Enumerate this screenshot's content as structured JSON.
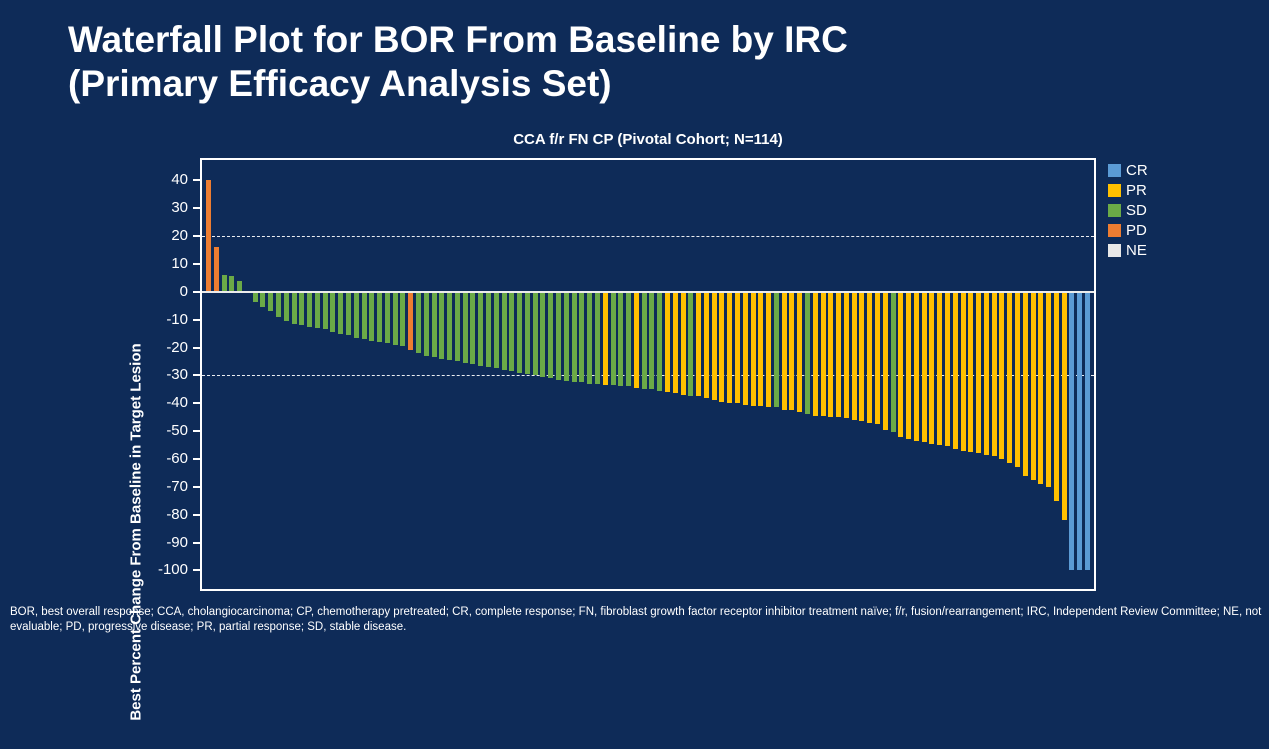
{
  "slide": {
    "title_line1": "Waterfall Plot for BOR From Baseline by IRC",
    "title_line2": "(Primary Efficacy Analysis Set)",
    "footnote": "BOR, best overall response; CCA, cholangiocarcinoma; CP, chemotherapy pretreated; CR, complete response; FN, fibroblast growth factor receptor inhibitor treatment naïve; f/r, fusion/rearrangement; IRC, Independent Review Committee; NE, not evaluable; PD, progressive disease; PR, partial response; SD, stable disease."
  },
  "colors": {
    "background": "#0E2B58",
    "text": "#FFFFFF",
    "frame": "#FFFFFF",
    "zero_line": "#ECECEC",
    "reference_line": "#FFFFFF"
  },
  "legend": [
    {
      "label": "CR",
      "color": "#5B9BD5"
    },
    {
      "label": "PR",
      "color": "#FFC000"
    },
    {
      "label": "SD",
      "color": "#6BAA47"
    },
    {
      "label": "PD",
      "color": "#ED7D31"
    },
    {
      "label": "NE",
      "color": "#E8E8E8"
    }
  ],
  "chart_data": {
    "type": "bar",
    "subtype": "waterfall",
    "title": "CCA f/r FN CP (Pivotal Cohort; N=114)",
    "xlabel": "",
    "ylabel": "Best Percent Change From Baseline in Target Lesion",
    "n": 114,
    "ylim": [
      -106.7,
      47.3
    ],
    "yticks": [
      40,
      30,
      20,
      10,
      0,
      -10,
      -20,
      -30,
      -40,
      -50,
      -60,
      -70,
      -80,
      -90,
      -100
    ],
    "reference_lines": [
      20,
      -30
    ],
    "grid": false,
    "legend_position": "top-right",
    "category_names": {
      "CR": "complete response",
      "PR": "partial response",
      "SD": "stable disease",
      "PD": "progressive disease",
      "NE": "not evaluable"
    },
    "bars": [
      {
        "v": 40,
        "c": "PD"
      },
      {
        "v": 16,
        "c": "PD"
      },
      {
        "v": 6,
        "c": "SD"
      },
      {
        "v": 5.5,
        "c": "SD"
      },
      {
        "v": 4,
        "c": "SD"
      },
      {
        "v": 0,
        "c": "NE"
      },
      {
        "v": -3.5,
        "c": "SD"
      },
      {
        "v": -5.5,
        "c": "SD"
      },
      {
        "v": -7,
        "c": "SD"
      },
      {
        "v": -9,
        "c": "SD"
      },
      {
        "v": -10.5,
        "c": "SD"
      },
      {
        "v": -11.5,
        "c": "SD"
      },
      {
        "v": -12,
        "c": "SD"
      },
      {
        "v": -12.5,
        "c": "SD"
      },
      {
        "v": -13,
        "c": "SD"
      },
      {
        "v": -13.5,
        "c": "SD"
      },
      {
        "v": -14.5,
        "c": "SD"
      },
      {
        "v": -15,
        "c": "SD"
      },
      {
        "v": -15.5,
        "c": "SD"
      },
      {
        "v": -16.5,
        "c": "SD"
      },
      {
        "v": -17,
        "c": "SD"
      },
      {
        "v": -17.5,
        "c": "SD"
      },
      {
        "v": -18,
        "c": "SD"
      },
      {
        "v": -18.5,
        "c": "SD"
      },
      {
        "v": -19,
        "c": "SD"
      },
      {
        "v": -19.5,
        "c": "SD"
      },
      {
        "v": -21,
        "c": "PD"
      },
      {
        "v": -22,
        "c": "SD"
      },
      {
        "v": -23,
        "c": "SD"
      },
      {
        "v": -23.5,
        "c": "SD"
      },
      {
        "v": -24,
        "c": "SD"
      },
      {
        "v": -24.5,
        "c": "SD"
      },
      {
        "v": -25,
        "c": "SD"
      },
      {
        "v": -25.5,
        "c": "SD"
      },
      {
        "v": -26,
        "c": "SD"
      },
      {
        "v": -26.5,
        "c": "SD"
      },
      {
        "v": -27,
        "c": "SD"
      },
      {
        "v": -27.5,
        "c": "SD"
      },
      {
        "v": -28,
        "c": "SD"
      },
      {
        "v": -28.5,
        "c": "SD"
      },
      {
        "v": -29,
        "c": "SD"
      },
      {
        "v": -29.5,
        "c": "SD"
      },
      {
        "v": -30,
        "c": "SD"
      },
      {
        "v": -30.5,
        "c": "SD"
      },
      {
        "v": -31,
        "c": "SD"
      },
      {
        "v": -31.5,
        "c": "SD"
      },
      {
        "v": -32,
        "c": "SD"
      },
      {
        "v": -32.5,
        "c": "SD"
      },
      {
        "v": -32.5,
        "c": "SD"
      },
      {
        "v": -33,
        "c": "SD"
      },
      {
        "v": -33,
        "c": "SD"
      },
      {
        "v": -33.5,
        "c": "PR"
      },
      {
        "v": -33.5,
        "c": "SD"
      },
      {
        "v": -34,
        "c": "SD"
      },
      {
        "v": -34,
        "c": "SD"
      },
      {
        "v": -34.5,
        "c": "PR"
      },
      {
        "v": -35,
        "c": "SD"
      },
      {
        "v": -35,
        "c": "SD"
      },
      {
        "v": -35.5,
        "c": "SD"
      },
      {
        "v": -36,
        "c": "PR"
      },
      {
        "v": -36.5,
        "c": "PR"
      },
      {
        "v": -37,
        "c": "PR"
      },
      {
        "v": -37.5,
        "c": "SD"
      },
      {
        "v": -37.5,
        "c": "PR"
      },
      {
        "v": -38,
        "c": "PR"
      },
      {
        "v": -39,
        "c": "PR"
      },
      {
        "v": -39.5,
        "c": "PR"
      },
      {
        "v": -40,
        "c": "PR"
      },
      {
        "v": -40,
        "c": "PR"
      },
      {
        "v": -40.5,
        "c": "PR"
      },
      {
        "v": -41,
        "c": "PR"
      },
      {
        "v": -41,
        "c": "PR"
      },
      {
        "v": -41.5,
        "c": "PR"
      },
      {
        "v": -41.5,
        "c": "SD"
      },
      {
        "v": -42.5,
        "c": "PR"
      },
      {
        "v": -42.5,
        "c": "PR"
      },
      {
        "v": -43,
        "c": "PR"
      },
      {
        "v": -44,
        "c": "SD"
      },
      {
        "v": -44.5,
        "c": "PR"
      },
      {
        "v": -44.5,
        "c": "PR"
      },
      {
        "v": -45,
        "c": "PR"
      },
      {
        "v": -45,
        "c": "PR"
      },
      {
        "v": -45.5,
        "c": "PR"
      },
      {
        "v": -46,
        "c": "PR"
      },
      {
        "v": -46.5,
        "c": "PR"
      },
      {
        "v": -47,
        "c": "PR"
      },
      {
        "v": -47.5,
        "c": "PR"
      },
      {
        "v": -49.5,
        "c": "PR"
      },
      {
        "v": -50.5,
        "c": "SD"
      },
      {
        "v": -52,
        "c": "PR"
      },
      {
        "v": -53,
        "c": "PR"
      },
      {
        "v": -53.5,
        "c": "PR"
      },
      {
        "v": -54,
        "c": "PR"
      },
      {
        "v": -54.5,
        "c": "PR"
      },
      {
        "v": -55,
        "c": "PR"
      },
      {
        "v": -55.5,
        "c": "PR"
      },
      {
        "v": -56.5,
        "c": "PR"
      },
      {
        "v": -57,
        "c": "PR"
      },
      {
        "v": -57.5,
        "c": "PR"
      },
      {
        "v": -58,
        "c": "PR"
      },
      {
        "v": -58.5,
        "c": "PR"
      },
      {
        "v": -59,
        "c": "PR"
      },
      {
        "v": -60,
        "c": "PR"
      },
      {
        "v": -61.5,
        "c": "PR"
      },
      {
        "v": -63,
        "c": "PR"
      },
      {
        "v": -66,
        "c": "PR"
      },
      {
        "v": -67.5,
        "c": "PR"
      },
      {
        "v": -69,
        "c": "PR"
      },
      {
        "v": -70,
        "c": "PR"
      },
      {
        "v": -75,
        "c": "PR"
      },
      {
        "v": -82,
        "c": "PR"
      },
      {
        "v": -100,
        "c": "CR"
      },
      {
        "v": -100,
        "c": "CR"
      },
      {
        "v": -100,
        "c": "CR"
      }
    ]
  }
}
